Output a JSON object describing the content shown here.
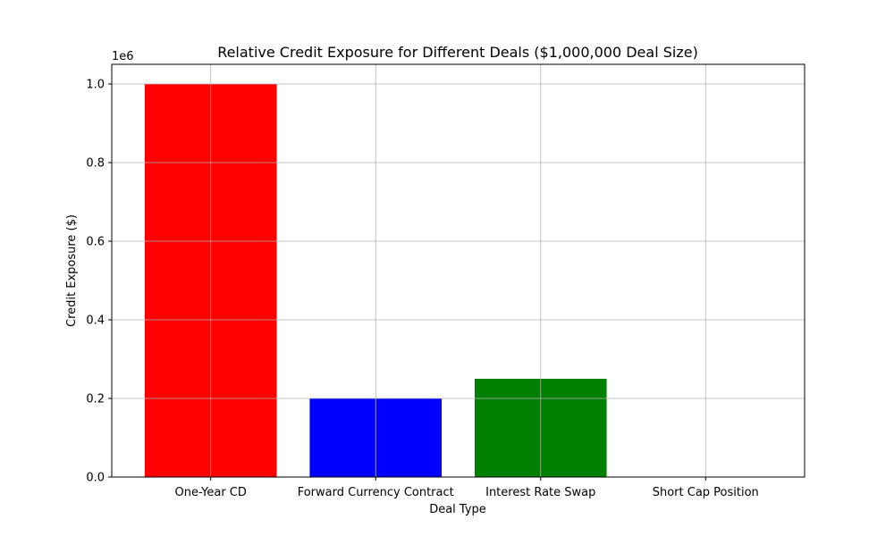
{
  "chart_data": {
    "type": "bar",
    "title": "Relative Credit Exposure for Different Deals ($1,000,000 Deal Size)",
    "xlabel": "Deal Type",
    "ylabel": "Credit Exposure ($)",
    "categories": [
      "One-Year CD",
      "Forward Currency Contract",
      "Interest Rate Swap",
      "Short Cap Position"
    ],
    "values": [
      1000000,
      200000,
      250000,
      0
    ],
    "colors": [
      "#ff0000",
      "#0000ff",
      "#008000",
      "#ffa500"
    ],
    "ylim": [
      0,
      1050000
    ],
    "y_ticks": [
      0,
      200000,
      400000,
      600000,
      800000,
      1000000
    ],
    "y_tick_labels": [
      "0.0",
      "0.2",
      "0.4",
      "0.6",
      "0.8",
      "1.0"
    ],
    "offset_text": "1e6",
    "grid": true
  }
}
